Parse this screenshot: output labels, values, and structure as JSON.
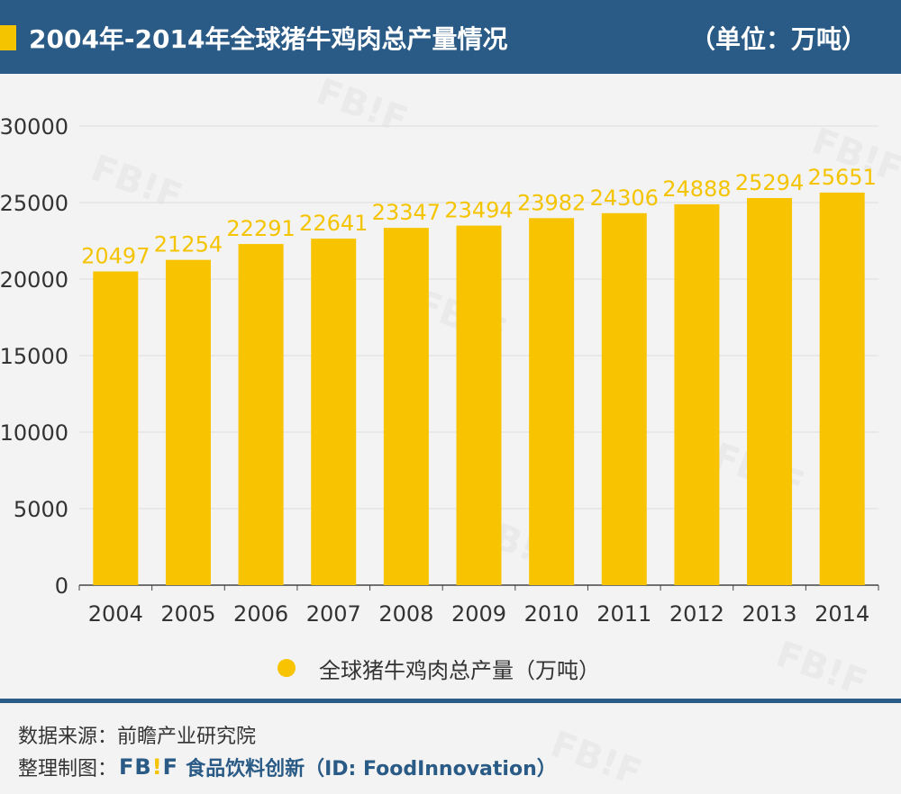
{
  "header": {
    "title": "2004年-2014年全球猪牛鸡肉总产量情况",
    "unit": "（单位：万吨）"
  },
  "colors": {
    "bar": "#f8c300",
    "label": "#f5c400",
    "header_bg": "#2a5a86",
    "accent": "#f5c400"
  },
  "chart_data": {
    "type": "bar",
    "title": "2004年-2014年全球猪牛鸡肉总产量情况",
    "categories": [
      "2004",
      "2005",
      "2006",
      "2007",
      "2008",
      "2009",
      "2010",
      "2011",
      "2012",
      "2013",
      "2014"
    ],
    "series": [
      {
        "name": "全球猪牛鸡肉总产量（万吨）",
        "values": [
          20497,
          21254,
          22291,
          22641,
          23347,
          23494,
          23982,
          24306,
          24888,
          25294,
          25651
        ]
      }
    ],
    "ylim": [
      0,
      30000
    ],
    "yticks": [
      0,
      5000,
      10000,
      15000,
      20000,
      25000,
      30000
    ],
    "xlabel": "",
    "ylabel": "",
    "grid": true,
    "data_labels": true,
    "legend_position": "bottom"
  },
  "legend": {
    "label": "全球猪牛鸡肉总产量（万吨）"
  },
  "footer": {
    "source": "数据来源：前瞻产业研究院",
    "credit_prefix": "整理制图：",
    "logo_main": "FB",
    "logo_mark": "!",
    "logo_end": "F",
    "brand": "食品饮料创新（ID: FoodInnovation）"
  },
  "watermark": "FB!F"
}
